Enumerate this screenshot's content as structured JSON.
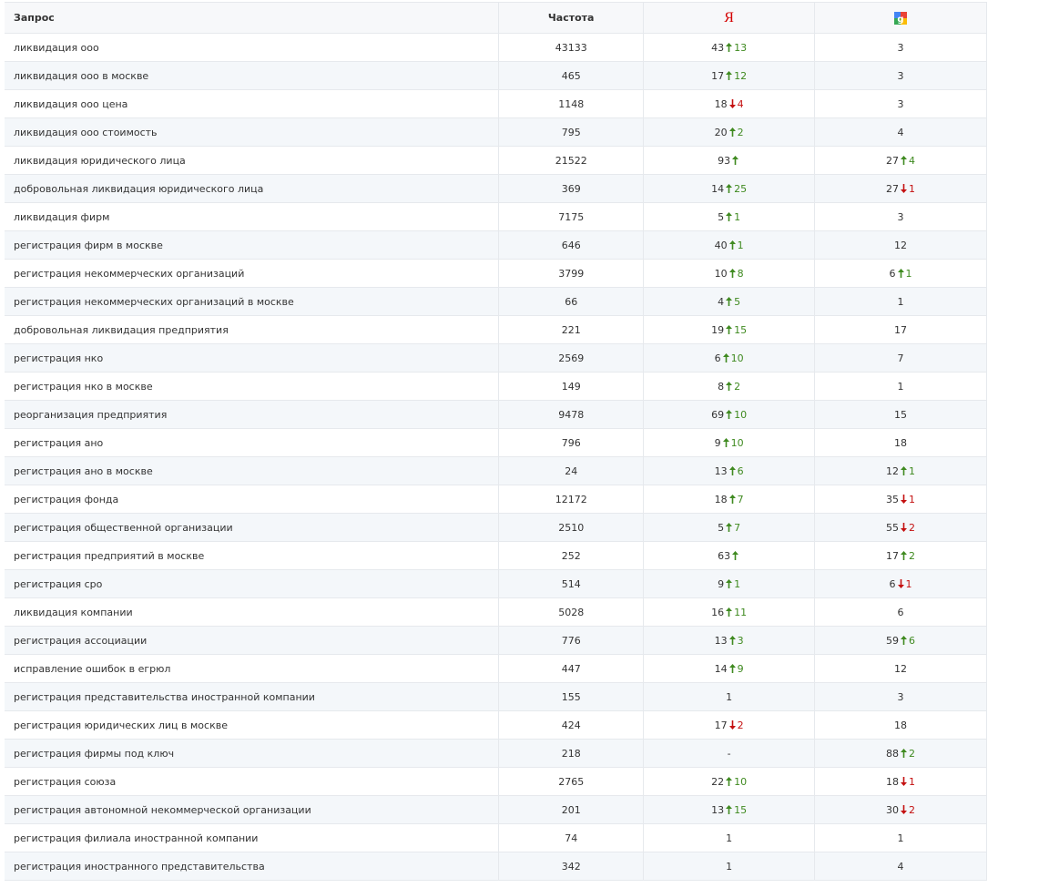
{
  "table": {
    "headers": {
      "query": "Запрос",
      "freq": "Частота",
      "yandex": "Я"
    },
    "rows": [
      {
        "query": "ликвидация ооо",
        "freq": 43133,
        "yandex": {
          "pos": 43,
          "trend": "up",
          "delta": 13
        },
        "google": {
          "pos": 3
        }
      },
      {
        "query": "ликвидация ооо в москве",
        "freq": 465,
        "yandex": {
          "pos": 17,
          "trend": "up",
          "delta": 12
        },
        "google": {
          "pos": 3
        }
      },
      {
        "query": "ликвидация ооо цена",
        "freq": 1148,
        "yandex": {
          "pos": 18,
          "trend": "down",
          "delta": 4
        },
        "google": {
          "pos": 3
        }
      },
      {
        "query": "ликвидация ооо стоимость",
        "freq": 795,
        "yandex": {
          "pos": 20,
          "trend": "up",
          "delta": 2
        },
        "google": {
          "pos": 4
        }
      },
      {
        "query": "ликвидация юридического лица",
        "freq": 21522,
        "yandex": {
          "pos": 93,
          "trend": "up"
        },
        "google": {
          "pos": 27,
          "trend": "up",
          "delta": 4
        }
      },
      {
        "query": "добровольная ликвидация юридического лица",
        "freq": 369,
        "yandex": {
          "pos": 14,
          "trend": "up",
          "delta": 25
        },
        "google": {
          "pos": 27,
          "trend": "down",
          "delta": 1
        }
      },
      {
        "query": "ликвидация фирм",
        "freq": 7175,
        "yandex": {
          "pos": 5,
          "trend": "up",
          "delta": 1
        },
        "google": {
          "pos": 3
        }
      },
      {
        "query": "регистрация фирм в москве",
        "freq": 646,
        "yandex": {
          "pos": 40,
          "trend": "up",
          "delta": 1
        },
        "google": {
          "pos": 12
        }
      },
      {
        "query": "регистрация некоммерческих организаций",
        "freq": 3799,
        "yandex": {
          "pos": 10,
          "trend": "up",
          "delta": 8
        },
        "google": {
          "pos": 6,
          "trend": "up",
          "delta": 1
        }
      },
      {
        "query": "регистрация некоммерческих организаций в москве",
        "freq": 66,
        "yandex": {
          "pos": 4,
          "trend": "up",
          "delta": 5
        },
        "google": {
          "pos": 1
        }
      },
      {
        "query": "добровольная ликвидация предприятия",
        "freq": 221,
        "yandex": {
          "pos": 19,
          "trend": "up",
          "delta": 15
        },
        "google": {
          "pos": 17
        }
      },
      {
        "query": "регистрация нко",
        "freq": 2569,
        "yandex": {
          "pos": 6,
          "trend": "up",
          "delta": 10
        },
        "google": {
          "pos": 7
        }
      },
      {
        "query": "регистрация нко в москве",
        "freq": 149,
        "yandex": {
          "pos": 8,
          "trend": "up",
          "delta": 2
        },
        "google": {
          "pos": 1
        }
      },
      {
        "query": "реорганизация предприятия",
        "freq": 9478,
        "yandex": {
          "pos": 69,
          "trend": "up",
          "delta": 10
        },
        "google": {
          "pos": 15
        }
      },
      {
        "query": "регистрация ано",
        "freq": 796,
        "yandex": {
          "pos": 9,
          "trend": "up",
          "delta": 10
        },
        "google": {
          "pos": 18
        }
      },
      {
        "query": "регистрация ано в москве",
        "freq": 24,
        "yandex": {
          "pos": 13,
          "trend": "up",
          "delta": 6
        },
        "google": {
          "pos": 12,
          "trend": "up",
          "delta": 1
        }
      },
      {
        "query": "регистрация фонда",
        "freq": 12172,
        "yandex": {
          "pos": 18,
          "trend": "up",
          "delta": 7
        },
        "google": {
          "pos": 35,
          "trend": "down",
          "delta": 1
        }
      },
      {
        "query": "регистрация общественной организации",
        "freq": 2510,
        "yandex": {
          "pos": 5,
          "trend": "up",
          "delta": 7
        },
        "google": {
          "pos": 55,
          "trend": "down",
          "delta": 2
        }
      },
      {
        "query": "регистрация предприятий в москве",
        "freq": 252,
        "yandex": {
          "pos": 63,
          "trend": "up"
        },
        "google": {
          "pos": 17,
          "trend": "up",
          "delta": 2
        }
      },
      {
        "query": "регистрация сро",
        "freq": 514,
        "yandex": {
          "pos": 9,
          "trend": "up",
          "delta": 1
        },
        "google": {
          "pos": 6,
          "trend": "down",
          "delta": 1
        }
      },
      {
        "query": "ликвидация компании",
        "freq": 5028,
        "yandex": {
          "pos": 16,
          "trend": "up",
          "delta": 11
        },
        "google": {
          "pos": 6
        }
      },
      {
        "query": "регистрация ассоциации",
        "freq": 776,
        "yandex": {
          "pos": 13,
          "trend": "up",
          "delta": 3
        },
        "google": {
          "pos": 59,
          "trend": "up",
          "delta": 6
        }
      },
      {
        "query": "исправление ошибок в егрюл",
        "freq": 447,
        "yandex": {
          "pos": 14,
          "trend": "up",
          "delta": 9
        },
        "google": {
          "pos": 12
        }
      },
      {
        "query": "регистрация представительства иностранной компании",
        "freq": 155,
        "yandex": {
          "pos": 1
        },
        "google": {
          "pos": 3
        }
      },
      {
        "query": "регистрация юридических лиц в москве",
        "freq": 424,
        "yandex": {
          "pos": 17,
          "trend": "down",
          "delta": 2
        },
        "google": {
          "pos": 18
        }
      },
      {
        "query": "регистрация фирмы под ключ",
        "freq": 218,
        "yandex": {
          "pos": "-"
        },
        "google": {
          "pos": 88,
          "trend": "up",
          "delta": 2
        }
      },
      {
        "query": "регистрация союза",
        "freq": 2765,
        "yandex": {
          "pos": 22,
          "trend": "up",
          "delta": 10
        },
        "google": {
          "pos": 18,
          "trend": "down",
          "delta": 1
        }
      },
      {
        "query": "регистрация автономной некоммерческой организации",
        "freq": 201,
        "yandex": {
          "pos": 13,
          "trend": "up",
          "delta": 15
        },
        "google": {
          "pos": 30,
          "trend": "down",
          "delta": 2
        }
      },
      {
        "query": "регистрация филиала иностранной компании",
        "freq": 74,
        "yandex": {
          "pos": 1
        },
        "google": {
          "pos": 1
        }
      },
      {
        "query": "регистрация иностранного представительства",
        "freq": 342,
        "yandex": {
          "pos": 1
        },
        "google": {
          "pos": 4
        }
      }
    ]
  }
}
